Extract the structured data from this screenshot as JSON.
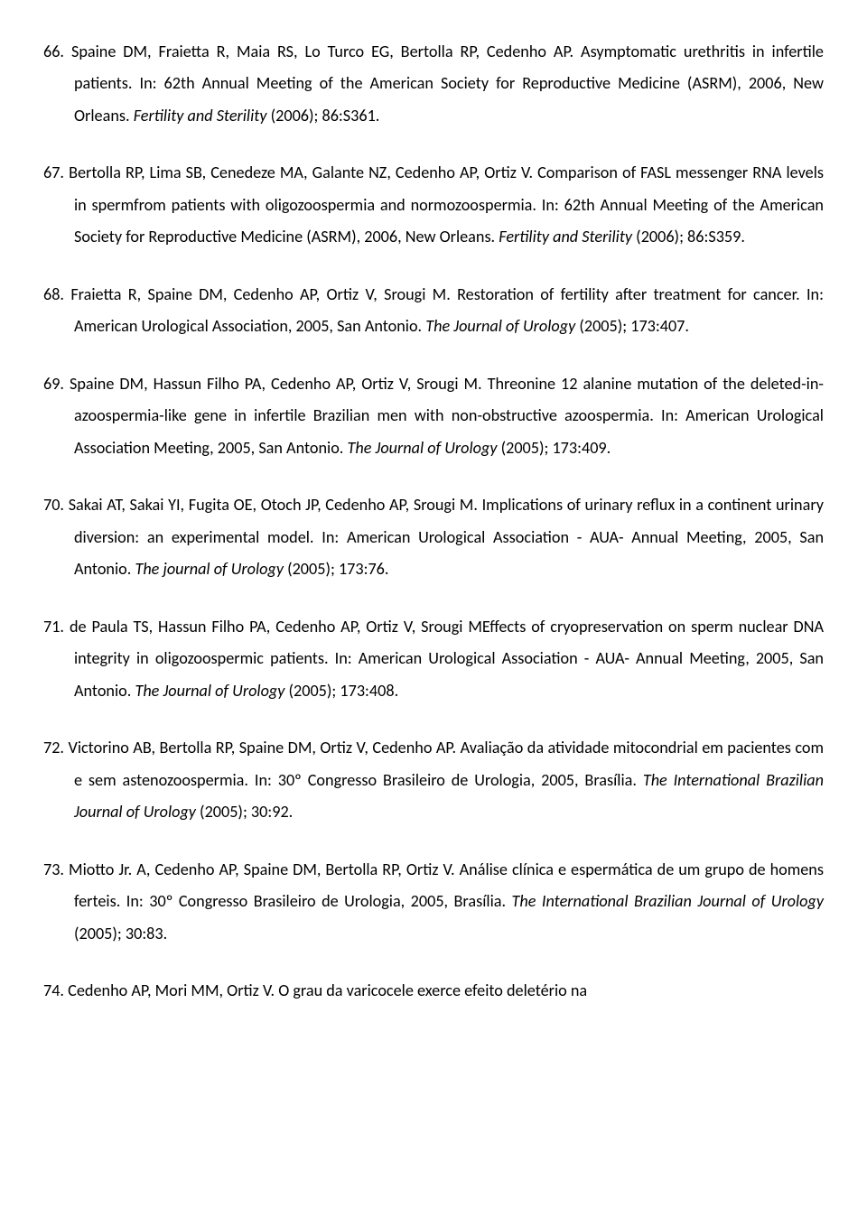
{
  "references": [
    {
      "num": "66.",
      "authors": "Spaine DM, Fraietta R, Maia RS, Lo Turco EG, Bertolla RP, Cedenho AP.",
      "title": "Asymptomatic urethritis in infertile patients.",
      "in": "In: 62th Annual Meeting of the American Society for Reproductive Medicine (ASRM), 2006, New Orleans.",
      "journal": "Fertility and Sterility",
      "citation": " (2006); 86:S361."
    },
    {
      "num": "67.",
      "authors": "Bertolla RP, Lima SB, Cenedeze MA, Galante NZ, Cedenho AP, Ortiz V.",
      "title": "Comparison of FASL messenger RNA levels in spermfrom patients with oligozoospermia and normozoospermia.",
      "in": "In: 62th Annual Meeting of the American Society for Reproductive Medicine (ASRM), 2006, New Orleans.",
      "journal": "Fertility and Sterility",
      "citation": " (2006); 86:S359."
    },
    {
      "num": "68.",
      "authors": "Fraietta R, Spaine DM, Cedenho AP, Ortiz V, Srougi M.",
      "title": "Restoration of fertility after treatment for cancer.",
      "in": "In: American Urological Association, 2005, San Antonio.",
      "journal": "The Journal of Urology",
      "citation": " (2005); 173:407."
    },
    {
      "num": "69.",
      "authors": "Spaine DM, Hassun Filho PA, Cedenho AP, Ortiz V, Srougi M.",
      "title": "Threonine 12 alanine mutation of the deleted-in-azoospermia-like gene in infertile Brazilian men with non-obstructive azoospermia.",
      "in": "In: American Urological Association Meeting, 2005, San Antonio.",
      "journal": "The Journal of Urology",
      "citation": " (2005); 173:409."
    },
    {
      "num": "70.",
      "authors": "Sakai AT, Sakai YI, Fugita OE, Otoch JP, Cedenho AP, Srougi M.",
      "title": "Implications of urinary reflux in a continent urinary diversion: an experimental model.",
      "in": "In: American Urological Association - AUA- Annual Meeting, 2005, San Antonio.",
      "journal": "The journal of Urology",
      "citation": " (2005); 173:76."
    },
    {
      "num": "71.",
      "authors": "de Paula TS, Hassun Filho PA, Cedenho AP, Ortiz V, Srougi M",
      "title": "Effects of cryopreservation on sperm nuclear DNA integrity in oligozoospermic patients.",
      "in": "In: American Urological Association - AUA- Annual Meeting, 2005, San Antonio.",
      "journal": "The Journal of Urology",
      "citation": " (2005); 173:408."
    },
    {
      "num": "72.",
      "authors": "Victorino AB, Bertolla RP, Spaine DM, Ortiz V, Cedenho AP.",
      "title": "Avaliação da atividade mitocondrial em pacientes com e sem astenozoospermia.",
      "in": "In: 30º Congresso Brasileiro de Urologia, 2005, Brasília.",
      "journal": "The International Brazilian Journal of Urology",
      "citation": " (2005); 30:92."
    },
    {
      "num": "73.",
      "authors": "Miotto Jr. A, Cedenho AP, Spaine DM, Bertolla RP, Ortiz V.",
      "title": "Análise clínica e espermática de um grupo de homens ferteis.",
      "in": "In: 30º Congresso Brasileiro de Urologia, 2005, Brasília.",
      "journal": "The International Brazilian Journal of Urology",
      "citation": " (2005); 30:83."
    },
    {
      "num": "74.",
      "authors": "Cedenho AP, Mori MM, Ortiz V.",
      "title": "O grau da varicocele exerce efeito deletério na",
      "in": "",
      "journal": "",
      "citation": ""
    }
  ]
}
